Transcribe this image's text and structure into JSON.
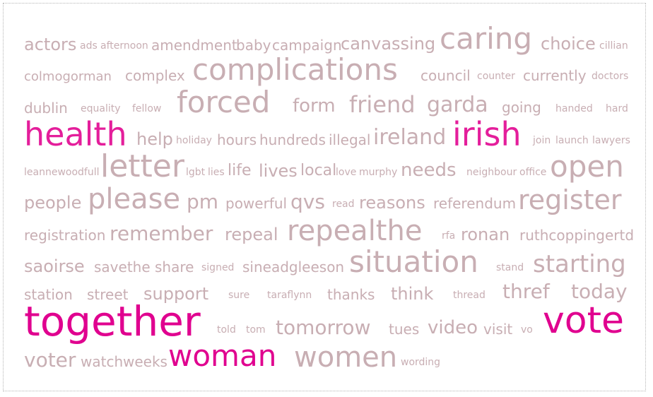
{
  "colors": {
    "normal": "#c8aeb3",
    "highlight": "#e41e9b",
    "strong": "#e0008f"
  },
  "words": [
    {
      "text": "actors",
      "tone": "normal"
    },
    {
      "text": "ads",
      "tone": "normal"
    },
    {
      "text": "afternoon",
      "tone": "normal"
    },
    {
      "text": "amendment",
      "tone": "normal"
    },
    {
      "text": "baby",
      "tone": "normal"
    },
    {
      "text": "campaign",
      "tone": "normal"
    },
    {
      "text": "canvassing",
      "tone": "normal"
    },
    {
      "text": "caring",
      "tone": "normal"
    },
    {
      "text": "choice",
      "tone": "normal"
    },
    {
      "text": "cillian",
      "tone": "normal"
    },
    {
      "text": "colmogorman",
      "tone": "normal"
    },
    {
      "text": "complex",
      "tone": "normal"
    },
    {
      "text": "complications",
      "tone": "normal"
    },
    {
      "text": "council",
      "tone": "normal"
    },
    {
      "text": "counter",
      "tone": "normal"
    },
    {
      "text": "currently",
      "tone": "normal"
    },
    {
      "text": "doctors",
      "tone": "normal"
    },
    {
      "text": "dublin",
      "tone": "normal"
    },
    {
      "text": "equality",
      "tone": "normal"
    },
    {
      "text": "fellow",
      "tone": "normal"
    },
    {
      "text": "forced",
      "tone": "normal"
    },
    {
      "text": "form",
      "tone": "normal"
    },
    {
      "text": "friend",
      "tone": "normal"
    },
    {
      "text": "garda",
      "tone": "normal"
    },
    {
      "text": "going",
      "tone": "normal"
    },
    {
      "text": "handed",
      "tone": "normal"
    },
    {
      "text": "hard",
      "tone": "normal"
    },
    {
      "text": "health",
      "tone": "highlight"
    },
    {
      "text": "help",
      "tone": "normal"
    },
    {
      "text": "holiday",
      "tone": "normal"
    },
    {
      "text": "hours",
      "tone": "normal"
    },
    {
      "text": "hundreds",
      "tone": "normal"
    },
    {
      "text": "illegal",
      "tone": "normal"
    },
    {
      "text": "ireland",
      "tone": "normal"
    },
    {
      "text": "irish",
      "tone": "highlight"
    },
    {
      "text": "join",
      "tone": "normal"
    },
    {
      "text": "launch",
      "tone": "normal"
    },
    {
      "text": "lawyers",
      "tone": "normal"
    },
    {
      "text": "leannewoodfull",
      "tone": "normal"
    },
    {
      "text": "letter",
      "tone": "normal"
    },
    {
      "text": "lgbt",
      "tone": "normal"
    },
    {
      "text": "lies",
      "tone": "normal"
    },
    {
      "text": "life",
      "tone": "normal"
    },
    {
      "text": "lives",
      "tone": "normal"
    },
    {
      "text": "local",
      "tone": "normal"
    },
    {
      "text": "love",
      "tone": "normal"
    },
    {
      "text": "murphy",
      "tone": "normal"
    },
    {
      "text": "needs",
      "tone": "normal"
    },
    {
      "text": "neighbour",
      "tone": "normal"
    },
    {
      "text": "office",
      "tone": "normal"
    },
    {
      "text": "open",
      "tone": "normal"
    },
    {
      "text": "people",
      "tone": "normal"
    },
    {
      "text": "please",
      "tone": "normal"
    },
    {
      "text": "pm",
      "tone": "normal"
    },
    {
      "text": "powerful",
      "tone": "normal"
    },
    {
      "text": "qvs",
      "tone": "normal"
    },
    {
      "text": "read",
      "tone": "normal"
    },
    {
      "text": "reasons",
      "tone": "normal"
    },
    {
      "text": "referendum",
      "tone": "normal"
    },
    {
      "text": "register",
      "tone": "normal"
    },
    {
      "text": "registration",
      "tone": "normal"
    },
    {
      "text": "remember",
      "tone": "normal"
    },
    {
      "text": "repeal",
      "tone": "normal"
    },
    {
      "text": "repealthe",
      "tone": "normal"
    },
    {
      "text": "rfa",
      "tone": "normal"
    },
    {
      "text": "ronan",
      "tone": "normal"
    },
    {
      "text": "ruthcoppingertd",
      "tone": "normal"
    },
    {
      "text": "saoirse",
      "tone": "normal"
    },
    {
      "text": "savethe",
      "tone": "normal"
    },
    {
      "text": "share",
      "tone": "normal"
    },
    {
      "text": "signed",
      "tone": "normal"
    },
    {
      "text": "sineadgleeson",
      "tone": "normal"
    },
    {
      "text": "situation",
      "tone": "normal"
    },
    {
      "text": "stand",
      "tone": "normal"
    },
    {
      "text": "starting",
      "tone": "normal"
    },
    {
      "text": "station",
      "tone": "normal"
    },
    {
      "text": "street",
      "tone": "normal"
    },
    {
      "text": "support",
      "tone": "normal"
    },
    {
      "text": "sure",
      "tone": "normal"
    },
    {
      "text": "taraflynn",
      "tone": "normal"
    },
    {
      "text": "thanks",
      "tone": "normal"
    },
    {
      "text": "think",
      "tone": "normal"
    },
    {
      "text": "thread",
      "tone": "normal"
    },
    {
      "text": "thref",
      "tone": "normal"
    },
    {
      "text": "today",
      "tone": "normal"
    },
    {
      "text": "together",
      "tone": "strong"
    },
    {
      "text": "told",
      "tone": "normal"
    },
    {
      "text": "tom",
      "tone": "normal"
    },
    {
      "text": "tomorrow",
      "tone": "normal"
    },
    {
      "text": "tues",
      "tone": "normal"
    },
    {
      "text": "video",
      "tone": "normal"
    },
    {
      "text": "visit",
      "tone": "normal"
    },
    {
      "text": "vo",
      "tone": "normal"
    },
    {
      "text": "vote",
      "tone": "strong"
    },
    {
      "text": "voter",
      "tone": "normal"
    },
    {
      "text": "watch",
      "tone": "normal"
    },
    {
      "text": "weeks",
      "tone": "normal"
    },
    {
      "text": "woman",
      "tone": "strong"
    },
    {
      "text": "women",
      "tone": "normal"
    },
    {
      "text": "wording",
      "tone": "normal"
    }
  ]
}
